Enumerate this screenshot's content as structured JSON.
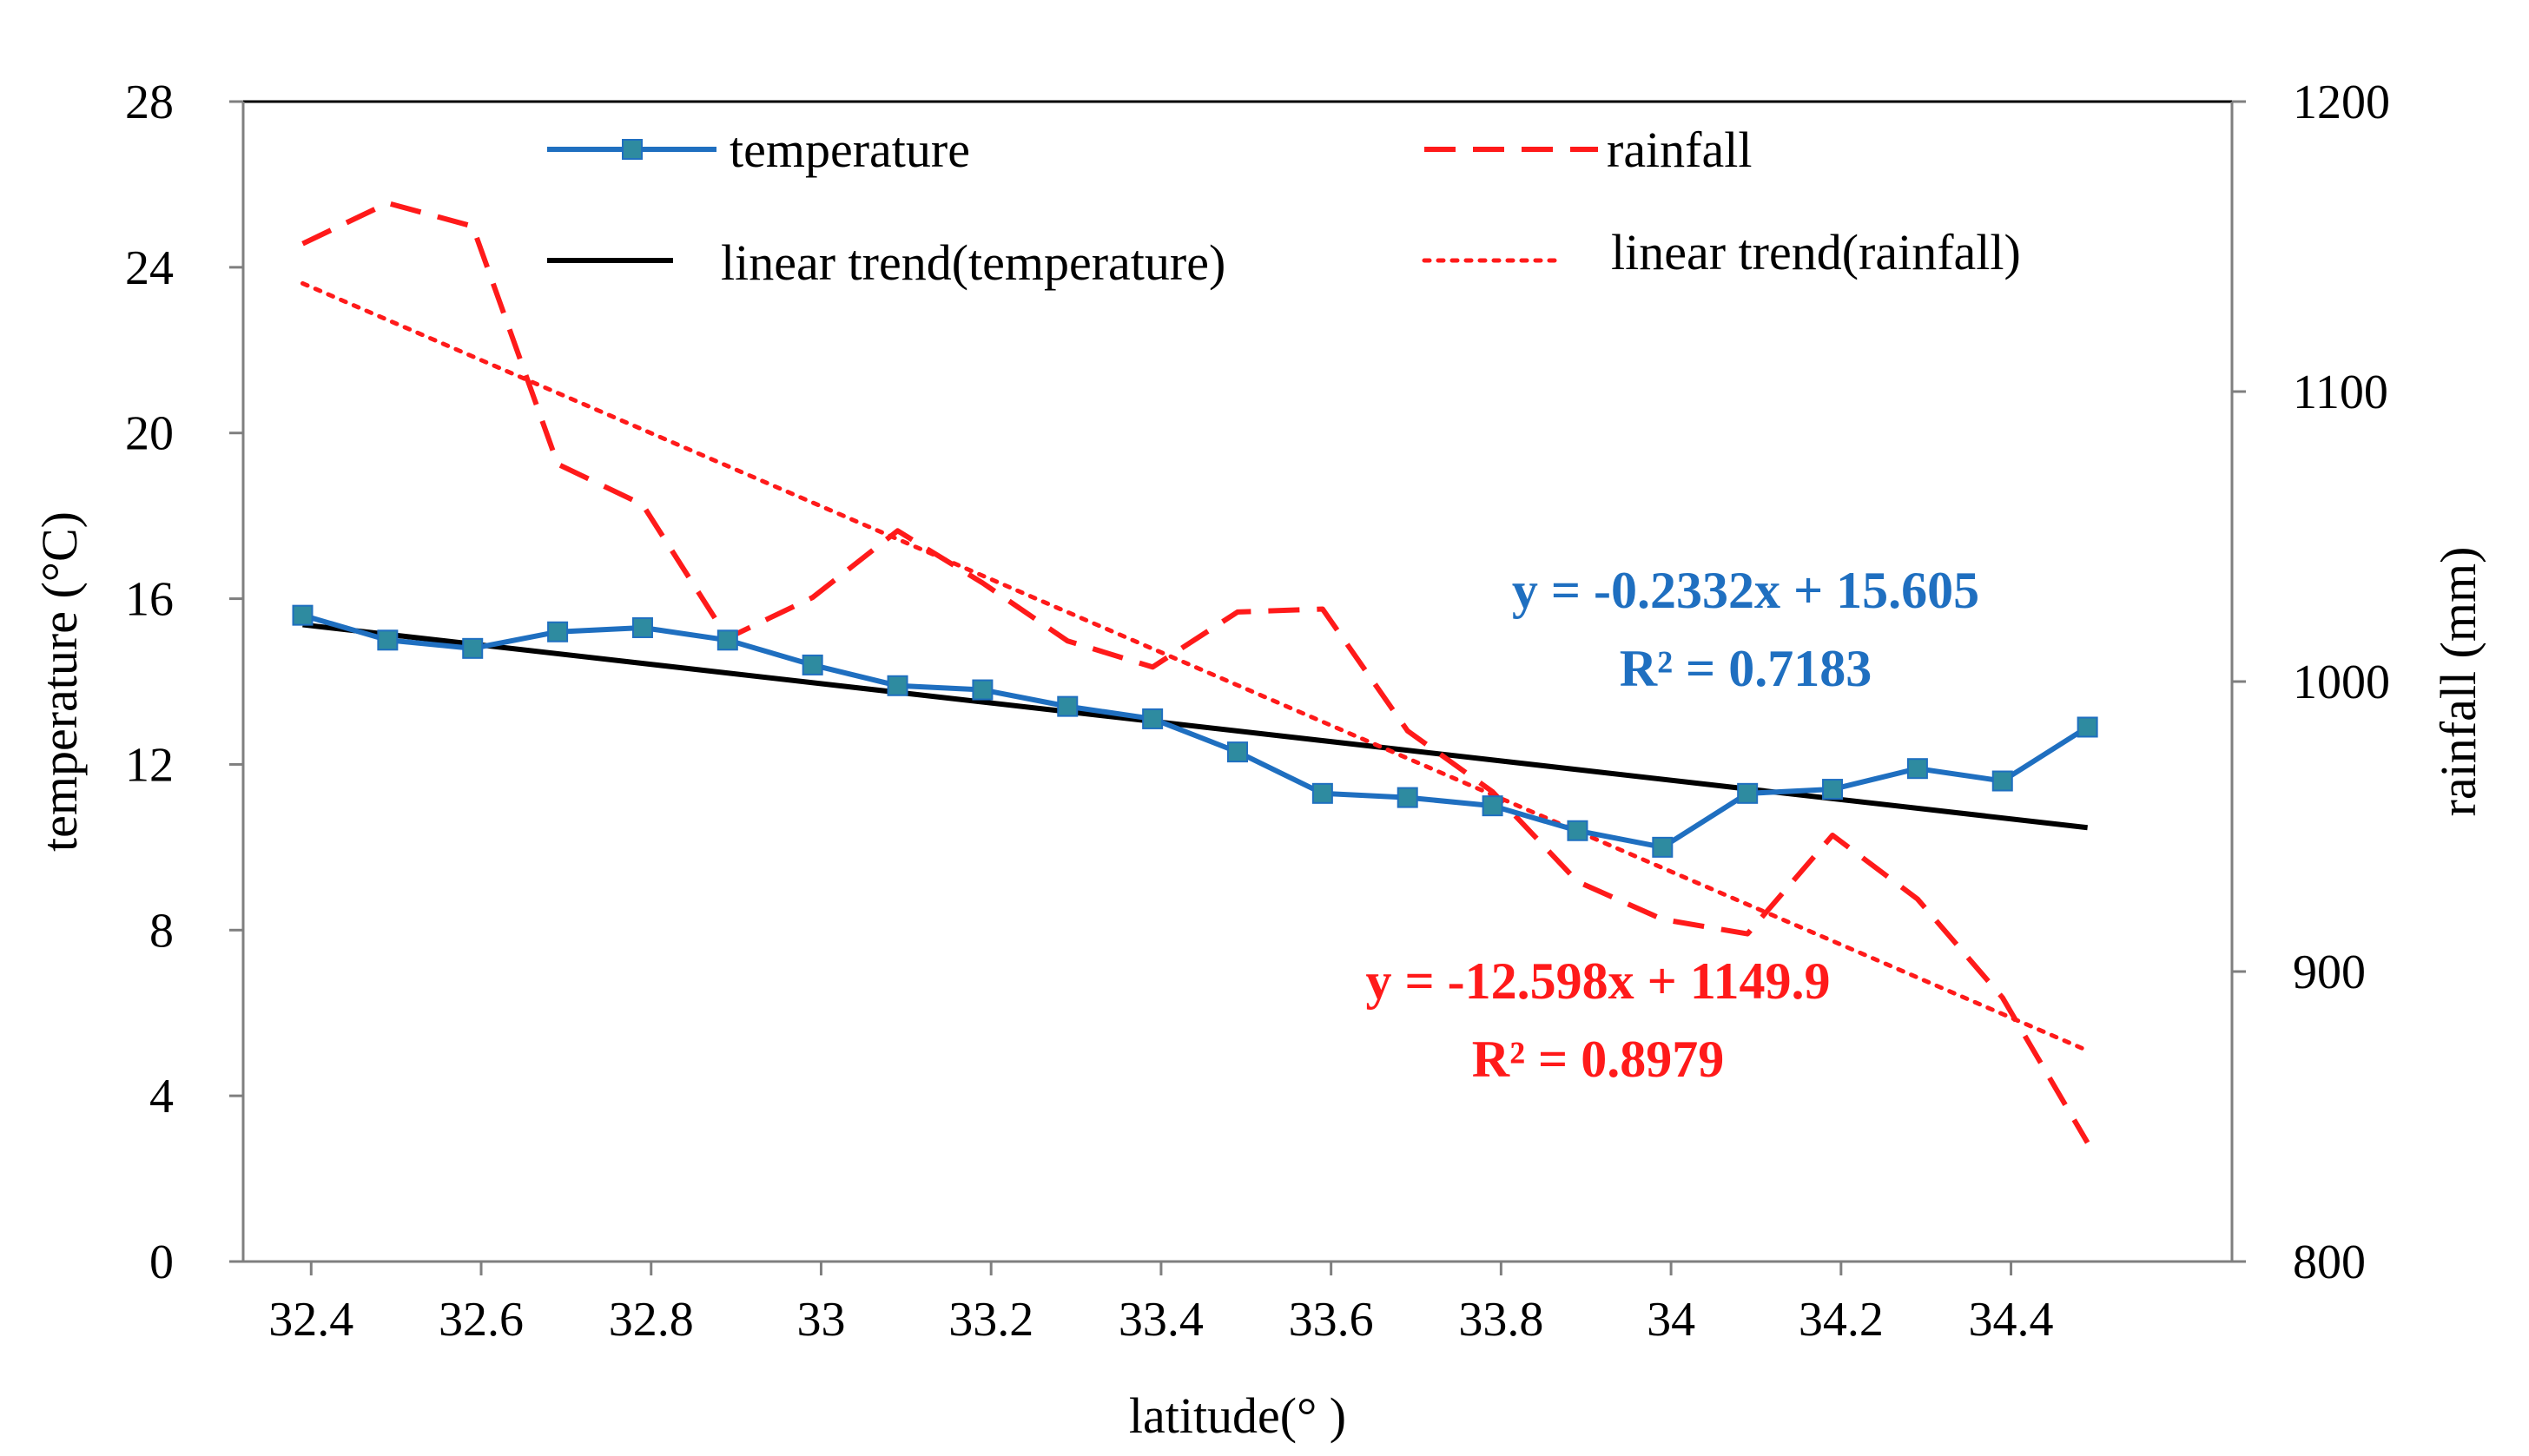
{
  "colors": {
    "temperature": "#1F6FC0",
    "temperature_marker": "#2E8BA0",
    "rainfall": "#FF1A1A",
    "temperature_trend": "#000000",
    "axis": "#000000",
    "frame": "#7F7F7F"
  },
  "chart_data": {
    "type": "line",
    "title": "",
    "xlabel": "latitude(°  )",
    "ylabel": "temperature (°C)",
    "ylabel_right": "rainfall (mm)",
    "xlim": [
      32.32,
      34.66
    ],
    "xticks": [
      32.4,
      32.6,
      32.8,
      33,
      33.2,
      33.4,
      33.6,
      33.8,
      34,
      34.2,
      34.4
    ],
    "xtick_labels": [
      "32.4",
      "32.6",
      "32.8",
      "33",
      "33.2",
      "33.4",
      "33.6",
      "33.8",
      "34",
      "34.2",
      "34.4"
    ],
    "ylim": [
      0,
      28
    ],
    "yticks": [
      0,
      4,
      8,
      12,
      16,
      20,
      24,
      28
    ],
    "ytick_labels": [
      "0",
      "4",
      "8",
      "12",
      "16",
      "20",
      "24",
      "28"
    ],
    "ylim_right": [
      800,
      1200
    ],
    "yticks_right": [
      800,
      900,
      1000,
      1100,
      1200
    ],
    "ytick_labels_right": [
      "800",
      "900",
      "1000",
      "1100",
      "1200"
    ],
    "x": [
      32.39,
      32.49,
      32.59,
      32.69,
      32.79,
      32.89,
      32.99,
      33.09,
      33.19,
      33.29,
      33.39,
      33.49,
      33.59,
      33.69,
      33.79,
      33.89,
      33.99,
      34.09,
      34.19,
      34.29,
      34.39,
      34.49
    ],
    "series": [
      {
        "name": "temperature",
        "axis": "left",
        "style": "solid-with-square-markers",
        "values": [
          15.6,
          15.0,
          14.8,
          15.2,
          15.3,
          15.0,
          14.4,
          13.9,
          13.8,
          13.4,
          13.1,
          12.3,
          11.3,
          11.2,
          11.0,
          10.4,
          10.0,
          11.3,
          11.4,
          11.9,
          11.6,
          12.9
        ]
      },
      {
        "name": "rainfall",
        "axis": "right",
        "style": "dashed",
        "values": [
          1151,
          1165,
          1157,
          1075,
          1061,
          1015,
          1029,
          1052,
          1034,
          1014,
          1005,
          1024,
          1025,
          983,
          962,
          931,
          918,
          913,
          947,
          925,
          891,
          841
        ]
      }
    ],
    "trendlines": [
      {
        "name": "linear trend(temperature)",
        "of": "temperature",
        "axis": "left",
        "style": "solid",
        "slope": -0.2332,
        "intercept": 15.605,
        "equation": "y = -0.2332x + 15.605",
        "r2": "R² = 0.7183"
      },
      {
        "name": "linear trend(rainfall)",
        "of": "rainfall",
        "axis": "right",
        "style": "dotted",
        "slope": -12.598,
        "intercept": 1149.9,
        "equation": "y = -12.598x + 1149.9",
        "r2": "R² = 0.8979"
      }
    ],
    "legend": {
      "placement": "top",
      "entries": [
        "temperature",
        "rainfall",
        "linear trend(temperature)",
        "linear trend(rainfall)"
      ]
    },
    "grid": false
  }
}
